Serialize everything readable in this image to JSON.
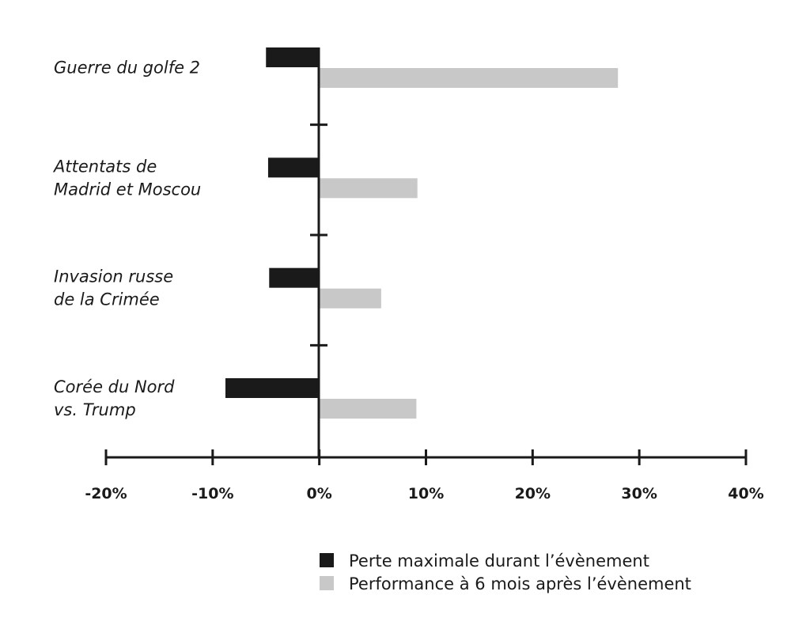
{
  "chart_data": {
    "type": "bar",
    "orientation": "horizontal",
    "title": "",
    "xlabel": "",
    "ylabel": "",
    "categories": [
      [
        "Guerre du golfe 2"
      ],
      [
        "Attentats de",
        "Madrid et Moscou"
      ],
      [
        "Invasion russe",
        "de la Crimée"
      ],
      [
        "Corée du Nord",
        "vs. Trump"
      ]
    ],
    "series": [
      {
        "name": "Perte maximale durant l’évènement",
        "color": "#1a1a1a",
        "values": [
          -5,
          -4.8,
          -4.7,
          -8.8
        ]
      },
      {
        "name": "Performance à 6 mois après l’évènement",
        "color": "#c8c8c8",
        "values": [
          28,
          9.2,
          5.8,
          9.1
        ]
      }
    ],
    "xlim": [
      -20,
      40
    ],
    "xticks": [
      -20,
      -10,
      0,
      10,
      20,
      30,
      40
    ],
    "xtick_labels": [
      "-20%",
      "-10%",
      "0%",
      "10%",
      "20%",
      "30%",
      "40%"
    ],
    "grid": false,
    "legend_position": "bottom-right"
  }
}
